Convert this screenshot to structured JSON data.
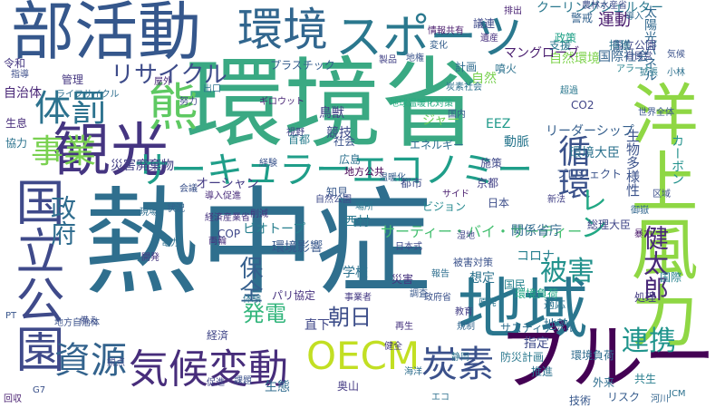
{
  "words": [
    {
      "text": "熱中症",
      "color": "#2f6f8e"
    },
    {
      "text": "環境省",
      "color": "#3aa983"
    },
    {
      "text": "部活動",
      "color": "#35578c"
    },
    {
      "text": "地域",
      "color": "#2a768e"
    },
    {
      "text": "スポーツ",
      "color": "#2a788e"
    },
    {
      "text": "環境",
      "color": "#31668e"
    },
    {
      "text": "洋上風力",
      "color": "#8fd744"
    },
    {
      "text": "国立公園",
      "color": "#3f4a8a"
    },
    {
      "text": "観光",
      "color": "#453581"
    },
    {
      "text": "ブルー",
      "color": "#440154"
    },
    {
      "text": "熊",
      "color": "#5ec962"
    },
    {
      "text": "事業",
      "color": "#7ad151"
    },
    {
      "text": "サーキュラーエコノミー",
      "color": "#1f9e89"
    },
    {
      "text": "資源",
      "color": "#33638d"
    },
    {
      "text": "気候変動",
      "color": "#472d7b"
    },
    {
      "text": "OECM",
      "color": "#c2df23"
    },
    {
      "text": "炭素",
      "color": "#3b518b"
    },
    {
      "text": "体罰",
      "color": "#2c728e"
    },
    {
      "text": "リサイクル",
      "color": "#3e4c8a"
    },
    {
      "text": "循環",
      "color": "#3b528b"
    },
    {
      "text": "政府",
      "color": "#2f6c8e"
    },
    {
      "text": "被害",
      "color": "#21918c"
    },
    {
      "text": "連携",
      "color": "#1f948c"
    },
    {
      "text": "健太郎",
      "color": "#482878"
    },
    {
      "text": "レン",
      "color": "#22a884"
    },
    {
      "text": "保全",
      "color": "#355f8d"
    },
    {
      "text": "発電",
      "color": "#31b57b"
    },
    {
      "text": "朝日",
      "color": "#3d4e8a"
    },
    {
      "text": "運動",
      "color": "#481b6d"
    },
    {
      "text": "太陽光パネル",
      "color": "#31688e"
    },
    {
      "text": "環境大臣",
      "color": "#2c728e"
    },
    {
      "text": "自然環境",
      "color": "#7fd34e"
    },
    {
      "text": "マングローブ",
      "color": "#481c6e"
    },
    {
      "text": "動脈",
      "color": "#2a778e"
    },
    {
      "text": "生物多様性",
      "color": "#3b528b"
    },
    {
      "text": "オーシャン",
      "color": "#443b84"
    },
    {
      "text": "プラスチック",
      "color": "#355e8d"
    },
    {
      "text": "カーボン",
      "color": "#21918c"
    },
    {
      "text": "リーダーシップ",
      "color": "#355f8d"
    },
    {
      "text": "サーティー・バイ・サーティー",
      "color": "#44bf70"
    },
    {
      "text": "首都",
      "color": "#287d8e"
    },
    {
      "text": "競技",
      "color": "#3e4989"
    },
    {
      "text": "災害廃棄物",
      "color": "#424086"
    },
    {
      "text": "ジャー",
      "color": "#6ccd5a"
    },
    {
      "text": "地方公共",
      "color": "#440154"
    },
    {
      "text": "国際社会",
      "color": "#33638d"
    },
    {
      "text": "エネルギー",
      "color": "#2e6e8e"
    },
    {
      "text": "関係省庁",
      "color": "#306a8e"
    },
    {
      "text": "プロジェクト",
      "color": "#3a538b"
    },
    {
      "text": "自然",
      "color": "#7ad151"
    },
    {
      "text": "西村",
      "color": "#2a788e"
    },
    {
      "text": "ビジョン",
      "color": "#23888e"
    },
    {
      "text": "ビオトープ",
      "color": "#277f8e"
    },
    {
      "text": "環境影響",
      "color": "#38588c"
    },
    {
      "text": "学校",
      "color": "#2c718e"
    },
    {
      "text": "コロナ",
      "color": "#27808e"
    },
    {
      "text": "地熱",
      "color": "#2e6f8e"
    },
    {
      "text": "防災計画",
      "color": "#2a788e"
    },
    {
      "text": "指定",
      "color": "#3e4a89"
    },
    {
      "text": "サスティナブル",
      "color": "#2e6e8e"
    },
    {
      "text": "経済",
      "color": "#404688"
    },
    {
      "text": "直下",
      "color": "#3f4788"
    },
    {
      "text": "生態",
      "color": "#2f6b8e"
    },
    {
      "text": "奥山",
      "color": "#443a83"
    },
    {
      "text": "災害",
      "color": "#46327e"
    },
    {
      "text": "被害対策",
      "color": "#3b528b"
    },
    {
      "text": "想定",
      "color": "#2c738e"
    },
    {
      "text": "国民",
      "color": "#26828e"
    },
    {
      "text": "環境負荷",
      "color": "#21a685"
    },
    {
      "text": "国際",
      "color": "#26828e"
    },
    {
      "text": "適応",
      "color": "#2c728e"
    },
    {
      "text": "EEZ",
      "color": "#1f9a8a"
    },
    {
      "text": "CO2",
      "color": "#404588"
    },
    {
      "text": "自治体",
      "color": "#482677"
    },
    {
      "text": "管理",
      "color": "#453781"
    },
    {
      "text": "協力",
      "color": "#2c738e"
    },
    {
      "text": "生息",
      "color": "#472c7a"
    },
    {
      "text": "推進",
      "color": "#2d718e"
    },
    {
      "text": "回収",
      "color": "#481f70"
    },
    {
      "text": "クーリングシェルター",
      "color": "#2a788e"
    },
    {
      "text": "議連",
      "color": "#3e4989"
    },
    {
      "text": "国立公園",
      "color": "#3f4788"
    },
    {
      "text": "噴火",
      "color": "#2c728e"
    },
    {
      "text": "計画",
      "color": "#2f6b8e"
    },
    {
      "text": "環境負荷",
      "color": "#2f6c8e"
    },
    {
      "text": "社会",
      "color": "#3b528b"
    },
    {
      "text": "鳥獣",
      "color": "#424086"
    },
    {
      "text": "知見",
      "color": "#38598c"
    },
    {
      "text": "地球温暖化対策",
      "color": "#27ad81"
    },
    {
      "text": "捕獲",
      "color": "#2c728e"
    },
    {
      "text": "警戒",
      "color": "#33628d"
    },
    {
      "text": "G7",
      "color": "#3b528b"
    },
    {
      "text": "令和",
      "color": "#453781"
    },
    {
      "text": "ライフサイクル",
      "color": "#2e6e8e"
    },
    {
      "text": "ギロウット",
      "color": "#482475"
    },
    {
      "text": "パリ協定",
      "color": "#46307e"
    },
    {
      "text": "地方自治体",
      "color": "#3b528b"
    },
    {
      "text": "総理大臣",
      "color": "#404688"
    },
    {
      "text": "COP",
      "color": "#3f4889"
    },
    {
      "text": "支援",
      "color": "#2a768e"
    },
    {
      "text": "JCM",
      "color": "#2c718e"
    },
    {
      "text": "政策",
      "color": "#1fa187"
    },
    {
      "text": "アラート",
      "color": "#26828e"
    },
    {
      "text": "世界全体",
      "color": "#39568c"
    },
    {
      "text": "施策",
      "color": "#3f4889"
    },
    {
      "text": "日本",
      "color": "#3d4e8a"
    },
    {
      "text": "京都",
      "color": "#424186"
    },
    {
      "text": "教育",
      "color": "#433e85"
    },
    {
      "text": "処理",
      "color": "#443a83"
    },
    {
      "text": "技術",
      "color": "#38588c"
    },
    {
      "text": "河川",
      "color": "#32648e"
    },
    {
      "text": "外来",
      "color": "#2e6d8e"
    },
    {
      "text": "共生",
      "color": "#277e8e"
    },
    {
      "text": "リスク",
      "color": "#365c8d"
    },
    {
      "text": "エコ",
      "color": "#2d708e"
    },
    {
      "text": "PT",
      "color": "#39568c"
    },
    {
      "text": "経験",
      "color": "#3a548c"
    },
    {
      "text": "視野",
      "color": "#414287"
    },
    {
      "text": "広島",
      "color": "#2d718e"
    },
    {
      "text": "温暖化",
      "color": "#355e8d"
    },
    {
      "text": "導入促進",
      "color": "#472a7a"
    },
    {
      "text": "経済産業省",
      "color": "#46337f"
    },
    {
      "text": "削減",
      "color": "#453581"
    },
    {
      "text": "自然公園",
      "color": "#3e4a89"
    },
    {
      "text": "都市",
      "color": "#3d4d8a"
    },
    {
      "text": "新法",
      "color": "#424086"
    },
    {
      "text": "区域",
      "color": "#3c508b"
    },
    {
      "text": "暴力",
      "color": "#481769"
    },
    {
      "text": "御嶽",
      "color": "#31668e"
    },
    {
      "text": "海洋",
      "color": "#2e6e8e"
    },
    {
      "text": "体験",
      "color": "#2c728e"
    },
    {
      "text": "両輪",
      "color": "#472f7d"
    },
    {
      "text": "農林水産省",
      "color": "#3e4c8a"
    },
    {
      "text": "情報共有",
      "color": "#481a6c"
    },
    {
      "text": "排出",
      "color": "#482173"
    },
    {
      "text": "導入",
      "color": "#306a8e"
    },
    {
      "text": "拡張",
      "color": "#2a788e"
    },
    {
      "text": "小林",
      "color": "#2d708e"
    },
    {
      "text": "自民党",
      "color": "#3e4989"
    },
    {
      "text": "気候",
      "color": "#3b528b"
    },
    {
      "text": "製品",
      "color": "#424186"
    },
    {
      "text": "地権",
      "color": "#3a548c"
    },
    {
      "text": "国内",
      "color": "#38598c"
    },
    {
      "text": "炭素社会",
      "color": "#2d708e"
    },
    {
      "text": "超過",
      "color": "#2a778e"
    },
    {
      "text": "屋外",
      "color": "#482878"
    },
    {
      "text": "出口",
      "color": "#2c728e"
    },
    {
      "text": "努力",
      "color": "#3e4c8a"
    },
    {
      "text": "指導",
      "color": "#3d4e8a"
    },
    {
      "text": "変化",
      "color": "#355f8d"
    },
    {
      "text": "開発",
      "color": "#453781"
    },
    {
      "text": "遺産",
      "color": "#46307e"
    },
    {
      "text": "現場",
      "color": "#2e6e8e"
    },
    {
      "text": "状況",
      "color": "#33638d"
    },
    {
      "text": "場所",
      "color": "#2a788e"
    },
    {
      "text": "サイド",
      "color": "#481c6e"
    },
    {
      "text": "会議",
      "color": "#3b528b"
    },
    {
      "text": "電力",
      "color": "#2d708e"
    },
    {
      "text": "湿地",
      "color": "#404688"
    },
    {
      "text": "鋭点",
      "color": "#3e4a89"
    },
    {
      "text": "促進",
      "color": "#404588"
    },
    {
      "text": "課題",
      "color": "#3b528b"
    },
    {
      "text": "備え",
      "color": "#3d4d8a"
    },
    {
      "text": "事業者",
      "color": "#443a83"
    },
    {
      "text": "調査",
      "color": "#38588c"
    },
    {
      "text": "報告",
      "color": "#2e6e8e"
    },
    {
      "text": "政府省",
      "color": "#3b528b"
    },
    {
      "text": "規制",
      "color": "#31668e"
    },
    {
      "text": "静岡",
      "color": "#2c728e"
    },
    {
      "text": "原発",
      "color": "#2a768e"
    },
    {
      "text": "再生",
      "color": "#46327e"
    },
    {
      "text": "健全",
      "color": "#453882"
    },
    {
      "text": "日本式",
      "color": "#3e4989"
    }
  ]
}
